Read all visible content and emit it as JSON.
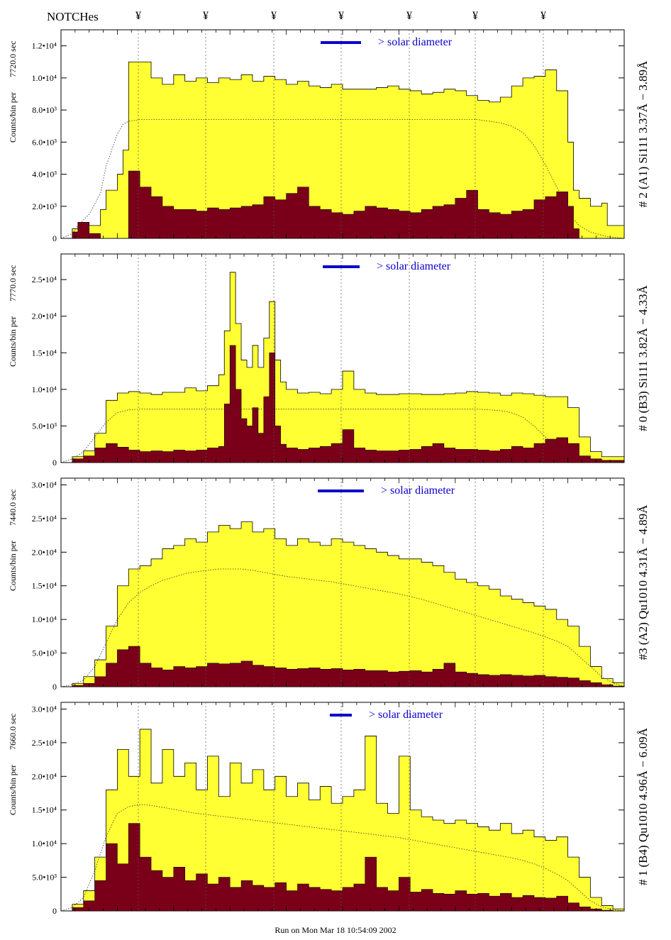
{
  "header": {
    "title": "NOTCHes",
    "notch_symbol": "¥"
  },
  "notch_positions": [
    195,
    290,
    386,
    481,
    577,
    670,
    766
  ],
  "footer": {
    "run_text": "Run on Mon Mar 18 10:54:09 2002"
  },
  "colors": {
    "total_fill": "#ffff33",
    "low_fill": "#7a0019",
    "outline": "#000000",
    "legend_bar": "#0a00cc",
    "legend_text": "#0a00cc"
  },
  "chart_data": [
    {
      "type": "area",
      "title": "",
      "ylabel": "Counts/bin per",
      "exposure": "7720.0 sec",
      "right_label": "# 2 (A1) Si111  3.37Å − 3.89Å",
      "legend": "> solar diameter",
      "ylim": [
        0,
        13000
      ],
      "yticks": [
        0,
        2000,
        4000,
        6000,
        8000,
        10000,
        12000
      ],
      "ytick_labels": [
        "0",
        "2.0•10³",
        "4.0•10³",
        "6.0•10³",
        "8.0•10³",
        "1.0•10⁴",
        "1.2•10⁴"
      ],
      "x": [
        0,
        0.02,
        0.03,
        0.05,
        0.07,
        0.08,
        0.1,
        0.11,
        0.12,
        0.14,
        0.16,
        0.18,
        0.2,
        0.22,
        0.24,
        0.26,
        0.28,
        0.3,
        0.32,
        0.34,
        0.36,
        0.38,
        0.4,
        0.42,
        0.44,
        0.46,
        0.48,
        0.5,
        0.52,
        0.54,
        0.56,
        0.58,
        0.6,
        0.62,
        0.64,
        0.66,
        0.68,
        0.7,
        0.72,
        0.74,
        0.76,
        0.78,
        0.8,
        0.82,
        0.84,
        0.86,
        0.88,
        0.9,
        0.91,
        0.92,
        0.94,
        0.96,
        0.97,
        1
      ],
      "total": [
        0,
        600,
        1000,
        800,
        1800,
        3000,
        4000,
        5500,
        11000,
        11000,
        10000,
        9600,
        10200,
        9800,
        10000,
        9700,
        10000,
        9900,
        10200,
        9800,
        10100,
        9900,
        9600,
        9800,
        9500,
        9400,
        9600,
        9300,
        9300,
        9300,
        9400,
        9500,
        9300,
        9200,
        9000,
        9100,
        9300,
        9200,
        8900,
        8600,
        8500,
        8800,
        9500,
        10000,
        10100,
        10500,
        9200,
        6000,
        3000,
        2500,
        2000,
        2200,
        800,
        0
      ],
      "low": [
        0,
        400,
        1000,
        300,
        0,
        0,
        0,
        0,
        4200,
        3200,
        2600,
        2000,
        1800,
        1800,
        1700,
        1900,
        1800,
        1900,
        2000,
        2100,
        2600,
        2400,
        2800,
        3200,
        2000,
        1800,
        1600,
        1500,
        1700,
        2000,
        1900,
        1800,
        1700,
        1600,
        1800,
        2000,
        2100,
        2500,
        3000,
        1800,
        1600,
        1500,
        1700,
        1800,
        2400,
        2600,
        2900,
        2000,
        600,
        0,
        0,
        0,
        0,
        0
      ],
      "smooth": [
        0,
        300,
        800,
        1500,
        2800,
        4500,
        6500,
        7100,
        7300,
        7400,
        7400,
        7400,
        7400,
        7400,
        7400,
        7400,
        7400,
        7400,
        7400,
        7400,
        7400,
        7400,
        7400,
        7400,
        7400,
        7400,
        7400,
        7400,
        7400,
        7400,
        7400,
        7400,
        7400,
        7400,
        7400,
        7400,
        7400,
        7400,
        7400,
        7400,
        7300,
        7200,
        7000,
        6600,
        5800,
        4600,
        3200,
        2000,
        1200,
        800,
        400,
        200,
        100,
        0
      ]
    },
    {
      "type": "area",
      "title": "",
      "ylabel": "Counts/bin per",
      "exposure": "7770.0 sec",
      "right_label": "# 0 (B3) Si111  3.82Å − 4.33Å",
      "legend": "> solar diameter",
      "ylim": [
        0,
        28500
      ],
      "yticks": [
        0,
        5000,
        10000,
        15000,
        20000,
        25000
      ],
      "ytick_labels": [
        "0",
        "5.0•10³",
        "1.0•10⁴",
        "1.5•10⁴",
        "2.0•10⁴",
        "2.5•10⁴"
      ],
      "x": [
        0,
        0.02,
        0.04,
        0.06,
        0.08,
        0.1,
        0.12,
        0.14,
        0.16,
        0.18,
        0.2,
        0.22,
        0.24,
        0.26,
        0.28,
        0.29,
        0.3,
        0.31,
        0.32,
        0.33,
        0.34,
        0.35,
        0.36,
        0.37,
        0.38,
        0.39,
        0.4,
        0.42,
        0.44,
        0.46,
        0.48,
        0.5,
        0.52,
        0.54,
        0.56,
        0.58,
        0.6,
        0.62,
        0.64,
        0.66,
        0.68,
        0.7,
        0.72,
        0.74,
        0.76,
        0.78,
        0.8,
        0.82,
        0.84,
        0.86,
        0.88,
        0.9,
        0.92,
        0.94,
        0.96,
        1
      ],
      "total": [
        0,
        800,
        1600,
        4000,
        8500,
        9500,
        9700,
        9500,
        9300,
        9600,
        9600,
        10200,
        9800,
        10500,
        12000,
        18000,
        26000,
        19000,
        14000,
        13000,
        16000,
        13000,
        17000,
        22000,
        14000,
        11000,
        10000,
        9500,
        9600,
        9400,
        10000,
        12500,
        10000,
        9500,
        9300,
        9300,
        9400,
        9400,
        9300,
        9300,
        9400,
        9500,
        9700,
        9600,
        9500,
        9200,
        9500,
        9400,
        9200,
        9000,
        9000,
        7500,
        3500,
        1500,
        800,
        0
      ],
      "low": [
        0,
        500,
        900,
        2000,
        2600,
        2100,
        1700,
        1500,
        1600,
        1500,
        1700,
        1600,
        1700,
        2000,
        2200,
        8000,
        16000,
        10000,
        6000,
        5000,
        7500,
        4000,
        9000,
        15000,
        5000,
        2500,
        2000,
        1800,
        2000,
        2200,
        2600,
        4500,
        2000,
        1700,
        1600,
        1600,
        1700,
        1800,
        2200,
        2600,
        2000,
        1800,
        1800,
        1700,
        1600,
        1800,
        2200,
        2000,
        2600,
        3200,
        3400,
        2600,
        900,
        500,
        300,
        0
      ],
      "smooth": [
        0,
        500,
        1500,
        3500,
        5500,
        6800,
        7200,
        7300,
        7300,
        7300,
        7300,
        7300,
        7300,
        7300,
        7300,
        7300,
        7300,
        7300,
        7300,
        7300,
        7300,
        7300,
        7300,
        7300,
        7300,
        7300,
        7300,
        7300,
        7300,
        7300,
        7300,
        7300,
        7300,
        7300,
        7300,
        7300,
        7300,
        7300,
        7300,
        7300,
        7300,
        7300,
        7300,
        7300,
        7200,
        7100,
        6800,
        6200,
        5000,
        3500,
        2000,
        1200,
        600,
        300,
        100,
        0
      ]
    },
    {
      "type": "area",
      "title": "",
      "ylabel": "Counts/bin per",
      "exposure": "7440.0 sec",
      "right_label": "#3 (A2) Qu1010  4.31Å − 4.89Å",
      "legend": "> solar diameter",
      "ylim": [
        0,
        31000
      ],
      "yticks": [
        0,
        5000,
        10000,
        15000,
        20000,
        25000,
        30000
      ],
      "ytick_labels": [
        "0",
        "5.0•10³",
        "1.0•10⁴",
        "1.5•10⁴",
        "2.0•10⁴",
        "2.5•10⁴",
        "3.0•10⁴"
      ],
      "x": [
        0,
        0.02,
        0.04,
        0.06,
        0.08,
        0.1,
        0.12,
        0.14,
        0.16,
        0.18,
        0.2,
        0.22,
        0.24,
        0.26,
        0.28,
        0.3,
        0.32,
        0.34,
        0.36,
        0.38,
        0.4,
        0.42,
        0.44,
        0.46,
        0.48,
        0.5,
        0.52,
        0.54,
        0.56,
        0.58,
        0.6,
        0.62,
        0.64,
        0.66,
        0.68,
        0.7,
        0.72,
        0.74,
        0.76,
        0.78,
        0.8,
        0.82,
        0.84,
        0.86,
        0.88,
        0.9,
        0.92,
        0.94,
        0.96,
        0.98,
        1
      ],
      "total": [
        0,
        500,
        1500,
        4000,
        9000,
        15000,
        17500,
        18000,
        19000,
        20500,
        21000,
        22000,
        21500,
        23000,
        24000,
        23500,
        24500,
        23000,
        23500,
        22000,
        21000,
        22000,
        21500,
        21000,
        22000,
        21500,
        21000,
        20500,
        20000,
        19500,
        19000,
        19000,
        18500,
        18000,
        17000,
        16000,
        15500,
        15000,
        14500,
        13500,
        13000,
        12500,
        12000,
        11500,
        10000,
        9000,
        6000,
        3000,
        1200,
        600,
        0
      ],
      "low": [
        0,
        200,
        500,
        1500,
        3500,
        5500,
        6000,
        3500,
        2800,
        2500,
        3000,
        2800,
        3000,
        3500,
        3400,
        3500,
        3800,
        3200,
        3000,
        2800,
        2600,
        2700,
        2800,
        2600,
        2700,
        2500,
        2600,
        2400,
        2400,
        2200,
        2300,
        2400,
        2200,
        2600,
        3500,
        2200,
        2000,
        1800,
        1700,
        1800,
        1700,
        1600,
        1700,
        1500,
        1400,
        1300,
        900,
        600,
        300,
        100,
        0
      ],
      "smooth": [
        0,
        300,
        1000,
        3000,
        6500,
        10000,
        12500,
        14000,
        15000,
        15800,
        16300,
        16800,
        17100,
        17300,
        17500,
        17500,
        17500,
        17300,
        17000,
        16700,
        16400,
        16200,
        16000,
        15800,
        15600,
        15300,
        15000,
        14700,
        14400,
        14100,
        13800,
        13400,
        13000,
        12500,
        12000,
        11500,
        11000,
        10500,
        10000,
        9500,
        9000,
        8500,
        8000,
        7400,
        6800,
        6000,
        4500,
        3000,
        1500,
        600,
        0
      ]
    },
    {
      "type": "area",
      "title": "",
      "ylabel": "Counts/bin per",
      "exposure": "7660.0 sec",
      "right_label": "# 1 (B4) Qu1010 4.96Å − 6.09Å",
      "legend": "> solar diameter",
      "ylim": [
        0,
        31000
      ],
      "yticks": [
        0,
        5000,
        10000,
        15000,
        20000,
        25000,
        30000
      ],
      "ytick_labels": [
        "0",
        "5.0•10³",
        "1.0•10⁴",
        "1.5•10⁴",
        "2.0•10⁴",
        "2.5•10⁴",
        "3.0•10⁴"
      ],
      "x": [
        0,
        0.02,
        0.04,
        0.06,
        0.08,
        0.1,
        0.12,
        0.14,
        0.16,
        0.18,
        0.2,
        0.22,
        0.24,
        0.26,
        0.28,
        0.3,
        0.32,
        0.34,
        0.36,
        0.38,
        0.4,
        0.42,
        0.44,
        0.46,
        0.48,
        0.5,
        0.52,
        0.54,
        0.56,
        0.58,
        0.6,
        0.62,
        0.64,
        0.66,
        0.68,
        0.7,
        0.72,
        0.74,
        0.76,
        0.78,
        0.8,
        0.82,
        0.84,
        0.86,
        0.88,
        0.9,
        0.92,
        0.94,
        0.96,
        0.98,
        1
      ],
      "total": [
        0,
        1000,
        3000,
        8000,
        18000,
        24000,
        20000,
        27000,
        19000,
        24000,
        20000,
        22000,
        18000,
        23000,
        17000,
        22000,
        19000,
        21000,
        18000,
        20000,
        17000,
        19000,
        16500,
        18500,
        16000,
        17000,
        18000,
        26000,
        16000,
        14500,
        23000,
        15000,
        14000,
        13500,
        13000,
        13500,
        13000,
        12500,
        12000,
        13000,
        11500,
        12000,
        11000,
        10500,
        11000,
        8000,
        5000,
        2000,
        800,
        300,
        0
      ],
      "low": [
        0,
        500,
        1500,
        4500,
        10000,
        7000,
        13000,
        8000,
        6000,
        5000,
        6500,
        4500,
        5500,
        4000,
        5000,
        3500,
        4500,
        3800,
        3500,
        4200,
        3000,
        4000,
        3500,
        3200,
        3000,
        3500,
        4000,
        8000,
        3500,
        3000,
        5000,
        2800,
        3200,
        2600,
        2500,
        3000,
        2500,
        2600,
        2200,
        2600,
        2000,
        2300,
        2000,
        1900,
        2200,
        1200,
        600,
        300,
        100,
        0,
        0
      ],
      "smooth": [
        0,
        500,
        2000,
        6000,
        11000,
        14500,
        15500,
        15800,
        15700,
        15400,
        15100,
        14800,
        14500,
        14300,
        14100,
        13900,
        13700,
        13500,
        13300,
        13100,
        12900,
        12700,
        12500,
        12300,
        12100,
        11900,
        11700,
        11500,
        11300,
        11100,
        10900,
        10600,
        10300,
        10000,
        9700,
        9400,
        9100,
        8800,
        8500,
        8200,
        7900,
        7500,
        7000,
        6300,
        5500,
        4500,
        3000,
        1500,
        600,
        200,
        0
      ]
    }
  ]
}
